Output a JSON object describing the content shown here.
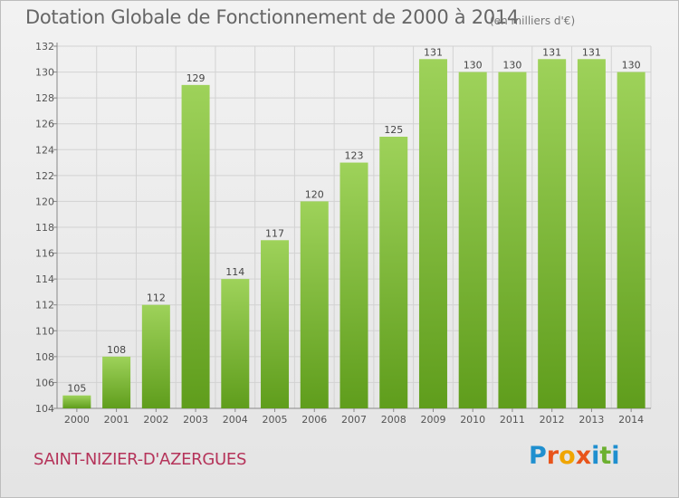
{
  "header": {
    "title": "Dotation Globale de Fonctionnement de 2000 à 2014",
    "unit": "(en milliers d'€)"
  },
  "footer": {
    "commune": "SAINT-NIZIER-D'AZERGUES",
    "logo_text": "Proxiti",
    "logo_colors": [
      "#1f8fcf",
      "#e8541b",
      "#f0a500",
      "#e8541b",
      "#1f8fcf",
      "#6cb030",
      "#1f8fcf"
    ]
  },
  "colors": {
    "bar_light": "#9ed25a",
    "bar_dark": "#5f9d1c",
    "commune_text": "#b5345a"
  },
  "chart_data": {
    "type": "bar",
    "title": "Dotation Globale de Fonctionnement de 2000 à 2014",
    "xlabel": "",
    "ylabel": "",
    "categories": [
      "2000",
      "2001",
      "2002",
      "2003",
      "2004",
      "2005",
      "2006",
      "2007",
      "2008",
      "2009",
      "2010",
      "2011",
      "2012",
      "2013",
      "2014"
    ],
    "values": [
      105,
      108,
      112,
      129,
      114,
      117,
      120,
      123,
      125,
      131,
      130,
      130,
      131,
      131,
      130
    ],
    "ylim": [
      104,
      132
    ],
    "yticks": [
      104,
      106,
      108,
      110,
      112,
      114,
      116,
      118,
      120,
      122,
      124,
      126,
      128,
      130,
      132
    ],
    "grid": true
  }
}
